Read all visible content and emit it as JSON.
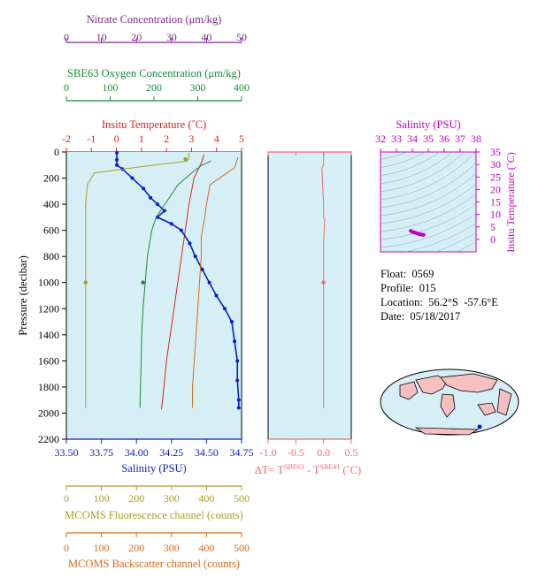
{
  "colors": {
    "background": "#d6eef6",
    "temperature": "#e0201c",
    "salinity": "#0a1ec8",
    "oxygen": "#1a8a3a",
    "nitrate": "#7a2a8a",
    "fluorescence": "#a8a020",
    "backscatter": "#d96a18",
    "delta_t": "#ef6a6a",
    "ts_plot": "#c000c0",
    "world_land": "#f6c0c0"
  },
  "float_info": {
    "float": "Float:  0569",
    "profile": "Profile:  015",
    "location": "Location:  56.2°S  -57.6°E",
    "date": "Date:  05/18/2017"
  },
  "chart_data": [
    {
      "type": "line",
      "id": "main_profile",
      "ylabel": "Pressure (decibar)",
      "ylim": [
        2200,
        0
      ],
      "yticks": [
        "0",
        "200",
        "400",
        "600",
        "800",
        "1000",
        "1200",
        "1400",
        "1600",
        "1800",
        "2000",
        "2200"
      ],
      "axes": {
        "temperature": {
          "title": "Insitu Temperature (˚C)",
          "min": -2,
          "max": 5,
          "ticks": [
            "-2",
            "-1",
            "0",
            "1",
            "2",
            "3",
            "4",
            "5"
          ]
        },
        "salinity": {
          "title": "Salinity (PSU)",
          "min": 33.5,
          "max": 34.75,
          "ticks": [
            "33.50",
            "33.75",
            "34.00",
            "34.25",
            "34.50",
            "34.75"
          ]
        },
        "nitrate": {
          "title": "Nitrate Concentration (μm/kg)",
          "min": 0,
          "max": 50,
          "ticks": [
            "0",
            "10",
            "20",
            "30",
            "40",
            "50"
          ]
        },
        "oxygen": {
          "title": "SBE63 Oxygen Concentration (μm/kg)",
          "min": 0,
          "max": 400,
          "ticks": [
            "0",
            "100",
            "200",
            "300",
            "400"
          ]
        },
        "fluorescence": {
          "title": "MCOMS Fluorescence channel (counts)",
          "min": 0,
          "max": 500,
          "ticks": [
            "0",
            "100",
            "200",
            "300",
            "400",
            "500"
          ]
        },
        "backscatter": {
          "title": "MCOMS Backscatter channel (counts)",
          "min": 0,
          "max": 500,
          "ticks": [
            "0",
            "100",
            "200",
            "300",
            "400",
            "500"
          ]
        }
      },
      "series": [
        {
          "key": "temperature",
          "axis": "temperature",
          "x": [
            3.5,
            3.4,
            3.1,
            2.9,
            2.75,
            2.6,
            2.45,
            2.3,
            2.15,
            2.0,
            1.9,
            1.8
          ],
          "y": [
            20,
            80,
            200,
            400,
            600,
            800,
            1000,
            1200,
            1400,
            1600,
            1800,
            1970
          ]
        },
        {
          "key": "salinity",
          "axis": "salinity",
          "markers": true,
          "x": [
            33.86,
            33.86,
            33.86,
            33.9,
            33.97,
            34.05,
            34.1,
            34.15,
            34.2,
            34.15,
            34.25,
            34.32,
            34.38,
            34.42,
            34.47,
            34.52,
            34.57,
            34.63,
            34.68,
            34.7,
            34.72,
            34.72,
            34.73,
            34.73
          ],
          "y": [
            5,
            60,
            100,
            130,
            200,
            280,
            350,
            400,
            450,
            500,
            550,
            600,
            700,
            800,
            900,
            1000,
            1100,
            1200,
            1300,
            1450,
            1600,
            1750,
            1900,
            1960
          ]
        },
        {
          "key": "oxygen",
          "axis": "oxygen",
          "x": [
            330,
            310,
            290,
            255,
            225,
            205,
            195,
            185,
            180,
            175,
            172,
            170,
            168
          ],
          "y": [
            70,
            100,
            150,
            250,
            400,
            500,
            600,
            800,
            1000,
            1200,
            1400,
            1700,
            1960
          ]
        },
        {
          "key": "fluorescence",
          "axis": "fluorescence",
          "x": [
            350,
            350,
            345,
            250,
            80,
            60,
            55,
            55,
            55,
            55,
            55
          ],
          "y": [
            5,
            40,
            70,
            100,
            160,
            250,
            400,
            700,
            1000,
            1500,
            1960
          ]
        },
        {
          "key": "backscatter",
          "axis": "backscatter",
          "x": [
            490,
            480,
            410,
            400,
            395,
            385,
            385,
            380,
            375,
            370,
            365,
            360,
            360
          ],
          "y": [
            40,
            120,
            250,
            400,
            500,
            650,
            800,
            1000,
            1200,
            1400,
            1600,
            1800,
            1960
          ]
        }
      ],
      "annotations": {
        "oxygen_dot": {
          "x": 175,
          "y": 1000
        },
        "fluorescence_dot": {
          "x": 55,
          "y": 1000
        },
        "nitrate_dot": {
          "x": 34,
          "y": 55
        }
      }
    },
    {
      "type": "line",
      "id": "delta_t",
      "xlabel": "ΔT= T",
      "xlabel_sup1": "SBE63",
      "xlabel_mid": " - T",
      "xlabel_sup2": "SBE41",
      "xlabel_unit": " (˚C)",
      "xlim": [
        -1.0,
        0.5
      ],
      "xticks": [
        "-1.0",
        "-0.5",
        "0.0",
        "0.5"
      ],
      "ylim": [
        2200,
        0
      ],
      "x": [
        0.0,
        0.0,
        -0.03,
        0.0,
        0.0,
        0.02,
        0.0,
        0.0,
        0.0,
        0.0
      ],
      "y": [
        0,
        100,
        120,
        400,
        500,
        510,
        700,
        1000,
        1500,
        1960
      ],
      "dot": {
        "x": 0.0,
        "y": 1000
      }
    },
    {
      "type": "scatter",
      "id": "ts_diagram",
      "title": "Salinity (PSU)",
      "ylabel": "Insitu Temperature (˚C)",
      "xlim": [
        32,
        38
      ],
      "ylim": [
        -5,
        35
      ],
      "xticks": [
        "32",
        "33",
        "34",
        "35",
        "36",
        "37",
        "38"
      ],
      "yticks": [
        "0",
        "5",
        "10",
        "15",
        "20",
        "25",
        "30",
        "35"
      ],
      "x": [
        33.9,
        34.0,
        34.1,
        34.2,
        34.3,
        34.4,
        34.5,
        34.6,
        34.7
      ],
      "y": [
        3.4,
        3.0,
        2.8,
        2.6,
        2.4,
        2.2,
        2.0,
        1.9,
        1.8
      ]
    }
  ]
}
